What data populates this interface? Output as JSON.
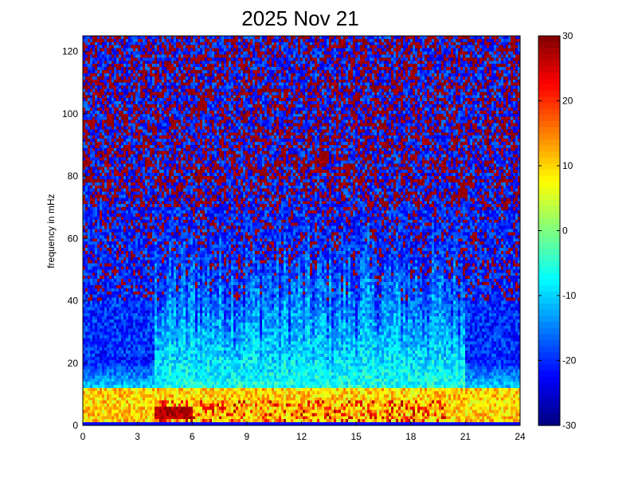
{
  "chart_data": {
    "type": "heatmap",
    "title": "2025 Nov 21",
    "xlabel": "",
    "ylabel": "frequency in mHz",
    "xlim": [
      0,
      24
    ],
    "ylim": [
      0,
      125
    ],
    "x_ticks": [
      "0",
      "3",
      "6",
      "9",
      "12",
      "15",
      "18",
      "21",
      "24"
    ],
    "y_ticks": [
      "0",
      "20",
      "40",
      "60",
      "80",
      "100",
      "120"
    ],
    "colorbar": {
      "range": [
        -30,
        30
      ],
      "ticks": [
        "30",
        "20",
        "10",
        "0",
        "-10",
        "-20",
        "-30"
      ],
      "colormap": "jet"
    },
    "grid": false,
    "description_of_field": {
      "low_frequency_band_mHz": [
        0,
        12
      ],
      "low_band_level": 10,
      "peak_band_mHz": [
        2,
        6
      ],
      "peak_band_hours": [
        4,
        6
      ],
      "peak_level": 28,
      "enhanced_activity_hours": [
        4,
        21
      ],
      "enhanced_activity_max_mHz": 65,
      "enhanced_activity_level": -10,
      "background_level": -22,
      "high_frequency_level_range": [
        -28,
        30
      ]
    }
  }
}
